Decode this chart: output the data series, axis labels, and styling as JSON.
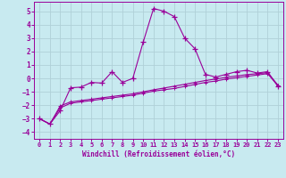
{
  "xlabel": "Windchill (Refroidissement éolien,°C)",
  "line_color": "#990099",
  "bg_color": "#c8eaf0",
  "grid_color": "#b0d0d8",
  "xlim": [
    -0.5,
    23.5
  ],
  "ylim": [
    -4.5,
    5.7
  ],
  "xticks": [
    0,
    1,
    2,
    3,
    4,
    5,
    6,
    7,
    8,
    9,
    10,
    11,
    12,
    13,
    14,
    15,
    16,
    17,
    18,
    19,
    20,
    21,
    22,
    23
  ],
  "yticks": [
    -4,
    -3,
    -2,
    -1,
    0,
    1,
    2,
    3,
    4,
    5
  ],
  "line1_x": [
    0,
    1,
    2,
    3,
    4,
    5,
    6,
    7,
    8,
    9,
    10,
    11,
    12,
    13,
    14,
    15,
    16,
    17,
    18,
    19,
    20,
    21,
    22,
    23
  ],
  "line1_y": [
    -3.0,
    -3.4,
    -2.4,
    -0.7,
    -0.65,
    -0.3,
    -0.35,
    0.5,
    -0.3,
    0.0,
    2.7,
    5.2,
    5.0,
    4.6,
    3.0,
    2.2,
    0.3,
    0.1,
    0.3,
    0.5,
    0.6,
    0.4,
    0.5,
    -0.6
  ],
  "line2_x": [
    0,
    1,
    2,
    3,
    4,
    5,
    6,
    7,
    8,
    9,
    10,
    11,
    12,
    13,
    14,
    15,
    16,
    17,
    18,
    19,
    20,
    21,
    22,
    23
  ],
  "line2_y": [
    -3.0,
    -3.4,
    -2.2,
    -1.85,
    -1.75,
    -1.65,
    -1.55,
    -1.45,
    -1.35,
    -1.25,
    -1.1,
    -0.95,
    -0.85,
    -0.75,
    -0.6,
    -0.45,
    -0.3,
    -0.2,
    -0.05,
    0.05,
    0.15,
    0.25,
    0.35,
    -0.55
  ],
  "line3_x": [
    0,
    1,
    2,
    3,
    4,
    5,
    6,
    7,
    8,
    9,
    10,
    11,
    12,
    13,
    14,
    15,
    16,
    17,
    18,
    19,
    20,
    21,
    22,
    23
  ],
  "line3_y": [
    -3.0,
    -3.4,
    -2.05,
    -1.75,
    -1.65,
    -1.55,
    -1.45,
    -1.35,
    -1.25,
    -1.15,
    -1.0,
    -0.85,
    -0.72,
    -0.58,
    -0.44,
    -0.3,
    -0.16,
    -0.05,
    0.08,
    0.18,
    0.28,
    0.35,
    0.42,
    -0.5
  ]
}
